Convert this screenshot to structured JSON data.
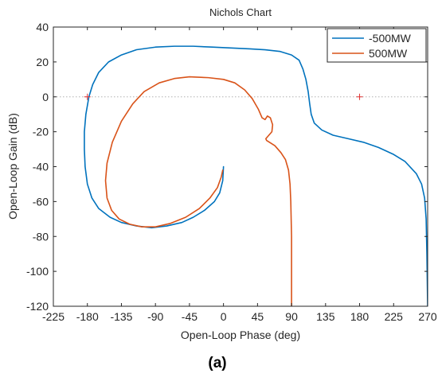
{
  "chart_data": {
    "type": "line",
    "title": "Nichols Chart",
    "xlabel": "Open-Loop Phase (deg)",
    "ylabel": "Open-Loop Gain (dB)",
    "xlim": [
      -225,
      270
    ],
    "ylim": [
      -120,
      40
    ],
    "xticks": [
      -225,
      -180,
      -135,
      -90,
      -45,
      0,
      45,
      90,
      135,
      180,
      225,
      270
    ],
    "yticks": [
      -120,
      -100,
      -80,
      -60,
      -40,
      -20,
      0,
      20,
      40
    ],
    "xtick_labels": [
      "-225",
      "-180",
      "-135",
      "-90",
      "-45",
      "0",
      "45",
      "90",
      "135",
      "180",
      "225",
      "270"
    ],
    "ytick_labels": [
      "-120",
      "-100",
      "-80",
      "-60",
      "-40",
      "-20",
      "0",
      "20",
      "40"
    ],
    "grid": false,
    "legend_position": "top-right",
    "zero_db_line": {
      "y": 0,
      "style": "dotted",
      "color": "#b0b0b0"
    },
    "critical_points": {
      "marker": "+",
      "color": "#e03030",
      "points": [
        [
          -180,
          0
        ],
        [
          180,
          0
        ]
      ]
    },
    "series": [
      {
        "name": "-500MW",
        "color": "#0072BD",
        "points": [
          [
            270,
            -120
          ],
          [
            269,
            -90
          ],
          [
            268,
            -70
          ],
          [
            266,
            -58
          ],
          [
            262,
            -50
          ],
          [
            255,
            -44
          ],
          [
            240,
            -37
          ],
          [
            225,
            -33
          ],
          [
            205,
            -29
          ],
          [
            185,
            -26
          ],
          [
            165,
            -24
          ],
          [
            145,
            -22
          ],
          [
            130,
            -19
          ],
          [
            120,
            -15
          ],
          [
            116,
            -10
          ],
          [
            114,
            -4
          ],
          [
            112,
            3
          ],
          [
            109,
            10
          ],
          [
            105,
            16
          ],
          [
            100,
            21
          ],
          [
            90,
            24
          ],
          [
            75,
            26
          ],
          [
            55,
            27
          ],
          [
            35,
            27.5
          ],
          [
            10,
            28
          ],
          [
            -15,
            28.5
          ],
          [
            -40,
            29
          ],
          [
            -65,
            29
          ],
          [
            -90,
            28.5
          ],
          [
            -115,
            27
          ],
          [
            -135,
            24
          ],
          [
            -152,
            20
          ],
          [
            -165,
            14
          ],
          [
            -173,
            7
          ],
          [
            -178,
            0
          ],
          [
            -182,
            -10
          ],
          [
            -184,
            -20
          ],
          [
            -184,
            -30
          ],
          [
            -183,
            -40
          ],
          [
            -180,
            -50
          ],
          [
            -174,
            -58
          ],
          [
            -165,
            -64
          ],
          [
            -150,
            -69
          ],
          [
            -135,
            -72
          ],
          [
            -115,
            -74
          ],
          [
            -95,
            -75
          ],
          [
            -75,
            -74
          ],
          [
            -55,
            -72
          ],
          [
            -40,
            -69
          ],
          [
            -25,
            -65
          ],
          [
            -12,
            -60
          ],
          [
            -5,
            -55
          ],
          [
            -1,
            -48
          ],
          [
            0,
            -40
          ]
        ]
      },
      {
        "name": "500MW",
        "color": "#D95319",
        "points": [
          [
            90,
            -120
          ],
          [
            90,
            -100
          ],
          [
            90,
            -80
          ],
          [
            89,
            -60
          ],
          [
            88,
            -50
          ],
          [
            86,
            -42
          ],
          [
            82,
            -36
          ],
          [
            76,
            -32
          ],
          [
            68,
            -28
          ],
          [
            57,
            -25
          ],
          [
            56,
            -24
          ],
          [
            60,
            -22
          ],
          [
            64,
            -20
          ],
          [
            65,
            -16
          ],
          [
            62,
            -12
          ],
          [
            58,
            -11
          ],
          [
            55,
            -13
          ],
          [
            51,
            -12
          ],
          [
            46,
            -7
          ],
          [
            38,
            -1
          ],
          [
            28,
            4
          ],
          [
            15,
            8
          ],
          [
            0,
            10
          ],
          [
            -20,
            11
          ],
          [
            -45,
            11.5
          ],
          [
            -65,
            10.5
          ],
          [
            -85,
            8
          ],
          [
            -105,
            3
          ],
          [
            -120,
            -4
          ],
          [
            -135,
            -14
          ],
          [
            -147,
            -26
          ],
          [
            -154,
            -38
          ],
          [
            -156,
            -48
          ],
          [
            -154,
            -58
          ],
          [
            -148,
            -65
          ],
          [
            -138,
            -70
          ],
          [
            -124,
            -73
          ],
          [
            -108,
            -74.5
          ],
          [
            -90,
            -74.5
          ],
          [
            -70,
            -72.5
          ],
          [
            -50,
            -69
          ],
          [
            -32,
            -64
          ],
          [
            -18,
            -58
          ],
          [
            -8,
            -52
          ],
          [
            -3,
            -46
          ],
          [
            -1,
            -42
          ]
        ]
      }
    ]
  },
  "caption": "(a)"
}
